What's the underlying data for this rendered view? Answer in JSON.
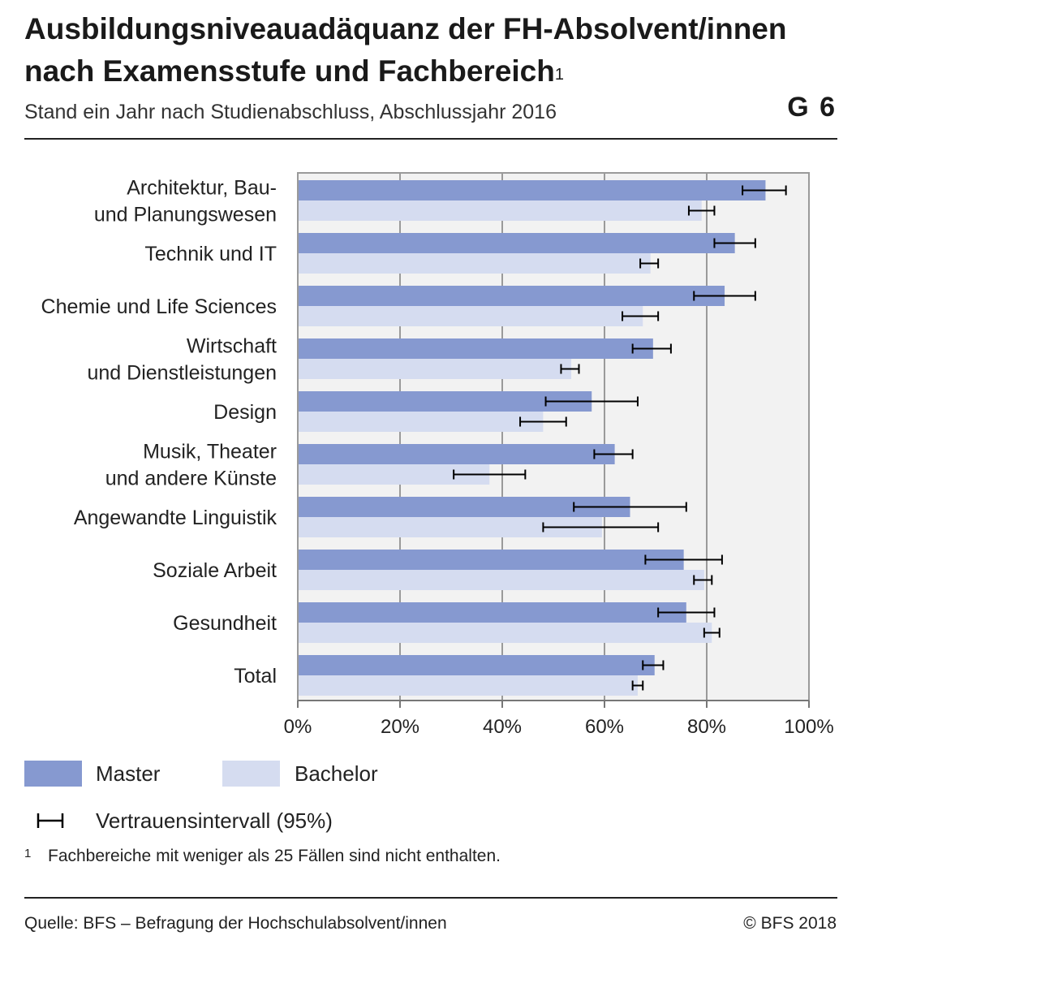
{
  "title_line1": "Ausbildungsniveauadäquanz der FH-Absolvent/innen",
  "title_line2": "nach Examensstufe und Fachbereich",
  "title_sup": "1",
  "subtitle": "Stand ein Jahr nach Studienabschluss, Abschlussjahr 2016",
  "graphic_number": "G 6",
  "colors": {
    "master": "#8699d0",
    "bachelor": "#d5dcf0",
    "plot_bg": "#f2f2f2",
    "grid": "#9a9a9a"
  },
  "chart_data": {
    "type": "bar",
    "orientation": "horizontal",
    "categories": [
      [
        "Architektur, Bau-",
        "und Planungswesen"
      ],
      [
        "Technik und IT"
      ],
      [
        "Chemie und Life Sciences"
      ],
      [
        "Wirtschaft",
        "und Dienstleistungen"
      ],
      [
        "Design"
      ],
      [
        "Musik, Theater",
        "und andere Künste"
      ],
      [
        "Angewandte Linguistik"
      ],
      [
        "Soziale Arbeit"
      ],
      [
        "Gesundheit"
      ],
      [
        "Total"
      ]
    ],
    "series": [
      {
        "name": "Master",
        "values": [
          91.5,
          85.5,
          83.5,
          69.5,
          57.5,
          62.0,
          65.0,
          75.5,
          76.0,
          69.8
        ],
        "ci_low": [
          87.0,
          81.5,
          77.5,
          65.5,
          48.5,
          58.0,
          54.0,
          68.0,
          70.5,
          67.5
        ],
        "ci_high": [
          95.5,
          89.5,
          89.5,
          73.0,
          66.5,
          65.5,
          76.0,
          83.0,
          81.5,
          71.5
        ]
      },
      {
        "name": "Bachelor",
        "values": [
          79.0,
          69.0,
          67.5,
          53.5,
          48.0,
          37.5,
          59.5,
          79.5,
          81.0,
          66.5
        ],
        "ci_low": [
          76.5,
          67.0,
          63.5,
          51.5,
          43.5,
          30.5,
          48.0,
          77.5,
          79.5,
          65.5
        ],
        "ci_high": [
          81.5,
          70.5,
          70.5,
          55.0,
          52.5,
          44.5,
          70.5,
          81.0,
          82.5,
          67.5
        ]
      }
    ],
    "xlim": [
      0,
      100
    ],
    "xticks": [
      "0%",
      "20%",
      "40%",
      "60%",
      "80%",
      "100%"
    ],
    "grid": true,
    "legend_position": "bottom"
  },
  "legend": {
    "master": "Master",
    "bachelor": "Bachelor",
    "ci": "Vertrauensintervall (95%)"
  },
  "footnote_num": "1",
  "footnote": "Fachbereiche mit weniger als 25 Fällen sind nicht enthalten.",
  "source": "Quelle: BFS – Befragung der Hochschulabsolvent/innen",
  "copyright": "© BFS 2018"
}
